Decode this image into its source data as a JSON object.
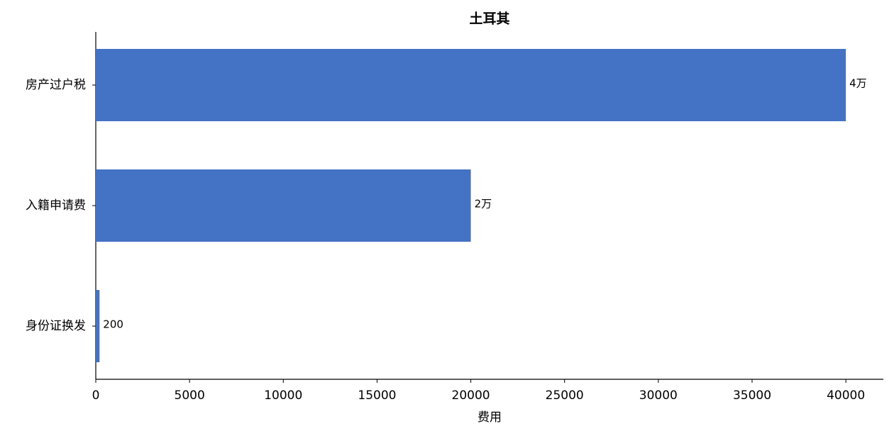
{
  "chart_data": {
    "type": "barh",
    "title": "土耳其",
    "x_label": "费用",
    "categories": [
      "房产过户税",
      "入籍申请费",
      "身份证换发"
    ],
    "values": [
      40000,
      20000,
      200
    ],
    "value_labels": [
      "4万",
      "2万",
      "200"
    ],
    "color": "#4472c4",
    "xlim": [
      0,
      42000
    ],
    "xticks": [
      0,
      5000,
      10000,
      15000,
      20000,
      25000,
      30000,
      35000,
      40000
    ],
    "grid": false
  }
}
